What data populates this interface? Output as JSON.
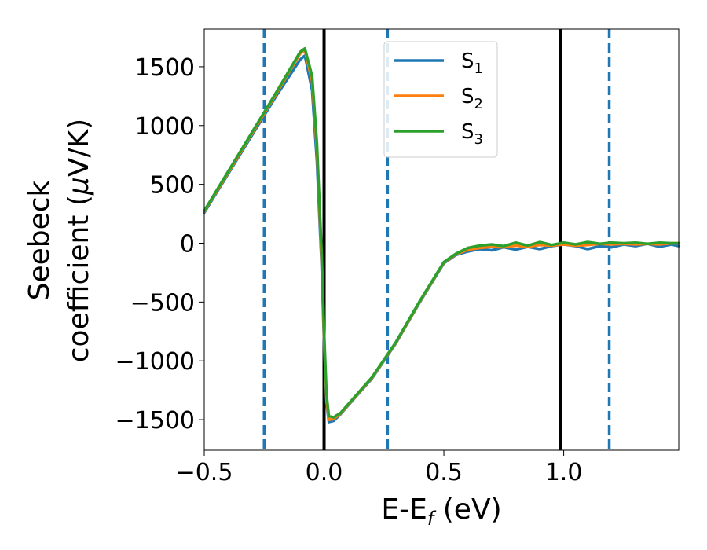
{
  "chart_data": {
    "type": "line",
    "xlabel": "E-E",
    "xlabel_sub": "f",
    "xlabel_unit": " (eV)",
    "ylabel_line1": "Seebeck",
    "ylabel_line2": "coefficient  (",
    "ylabel_mu": "μ",
    "ylabel_unit": "V/K)",
    "xlim": [
      -0.5,
      1.48
    ],
    "ylim": [
      -1760,
      1820
    ],
    "xticks": [
      -0.5,
      0.0,
      0.5,
      1.0
    ],
    "xtick_labels": [
      "−0.5",
      "0.0",
      "0.5",
      "1.0"
    ],
    "yticks": [
      -1500,
      -1000,
      -500,
      0,
      500,
      1000,
      1500
    ],
    "ytick_labels": [
      "−1500",
      "−1000",
      "−500",
      "0",
      "500",
      "1000",
      "1500"
    ],
    "grid": false,
    "legend_position": "top-center",
    "vlines": [
      {
        "x": -0.25,
        "style": "dashed",
        "color": "#1f77b4"
      },
      {
        "x": 0.0,
        "style": "solid",
        "color": "#000000"
      },
      {
        "x": 0.265,
        "style": "dashed",
        "color": "#1f77b4"
      },
      {
        "x": 0.985,
        "style": "solid",
        "color": "#000000"
      },
      {
        "x": 1.19,
        "style": "dashed",
        "color": "#1f77b4"
      }
    ],
    "series": [
      {
        "name": "S",
        "sub": "1",
        "color": "#1f77b4",
        "x": [
          -0.5,
          -0.4,
          -0.3,
          -0.2,
          -0.1,
          -0.08,
          -0.05,
          -0.03,
          -0.01,
          0.0,
          0.01,
          0.02,
          0.04,
          0.07,
          0.1,
          0.2,
          0.3,
          0.4,
          0.5,
          0.55,
          0.6,
          0.65,
          0.7,
          0.75,
          0.8,
          0.85,
          0.9,
          0.95,
          1.0,
          1.05,
          1.1,
          1.15,
          1.2,
          1.25,
          1.3,
          1.35,
          1.4,
          1.45,
          1.48
        ],
        "y": [
          260,
          590,
          920,
          1250,
          1560,
          1595,
          1300,
          700,
          -200,
          -850,
          -1350,
          -1520,
          -1510,
          -1450,
          -1380,
          -1150,
          -850,
          -500,
          -170,
          -100,
          -70,
          -50,
          -60,
          -35,
          -55,
          -30,
          -50,
          -25,
          -10,
          -25,
          -50,
          -25,
          -35,
          -10,
          -25,
          -5,
          -30,
          -10,
          -25
        ]
      },
      {
        "name": "S",
        "sub": "2",
        "color": "#ff7f0e",
        "x": [
          -0.5,
          -0.4,
          -0.3,
          -0.2,
          -0.1,
          -0.08,
          -0.05,
          -0.03,
          -0.01,
          0.0,
          0.01,
          0.02,
          0.04,
          0.07,
          0.1,
          0.2,
          0.3,
          0.4,
          0.5,
          0.55,
          0.6,
          0.65,
          0.7,
          0.75,
          0.8,
          0.85,
          0.9,
          0.95,
          1.0,
          1.05,
          1.1,
          1.15,
          1.2,
          1.25,
          1.3,
          1.35,
          1.4,
          1.45,
          1.48
        ],
        "y": [
          270,
          600,
          935,
          1270,
          1610,
          1640,
          1380,
          800,
          -150,
          -800,
          -1320,
          -1500,
          -1495,
          -1445,
          -1375,
          -1145,
          -845,
          -495,
          -165,
          -95,
          -55,
          -40,
          -30,
          -35,
          -20,
          -30,
          -15,
          -20,
          -10,
          -20,
          -15,
          -5,
          -10,
          -5,
          -10,
          -5,
          -10,
          0,
          0
        ]
      },
      {
        "name": "S",
        "sub": "3",
        "color": "#2ca02c",
        "x": [
          -0.5,
          -0.4,
          -0.3,
          -0.2,
          -0.1,
          -0.08,
          -0.05,
          -0.03,
          -0.01,
          0.0,
          0.01,
          0.02,
          0.04,
          0.07,
          0.1,
          0.2,
          0.3,
          0.4,
          0.5,
          0.55,
          0.6,
          0.65,
          0.7,
          0.75,
          0.8,
          0.85,
          0.9,
          0.95,
          1.0,
          1.05,
          1.1,
          1.15,
          1.2,
          1.25,
          1.3,
          1.35,
          1.4,
          1.45,
          1.48
        ],
        "y": [
          275,
          610,
          945,
          1280,
          1625,
          1655,
          1420,
          850,
          -100,
          -750,
          -1280,
          -1470,
          -1480,
          -1440,
          -1370,
          -1140,
          -840,
          -490,
          -160,
          -90,
          -40,
          -20,
          -10,
          -25,
          5,
          -20,
          10,
          -15,
          5,
          -10,
          10,
          -5,
          5,
          0,
          5,
          -5,
          5,
          0,
          0
        ]
      }
    ]
  }
}
